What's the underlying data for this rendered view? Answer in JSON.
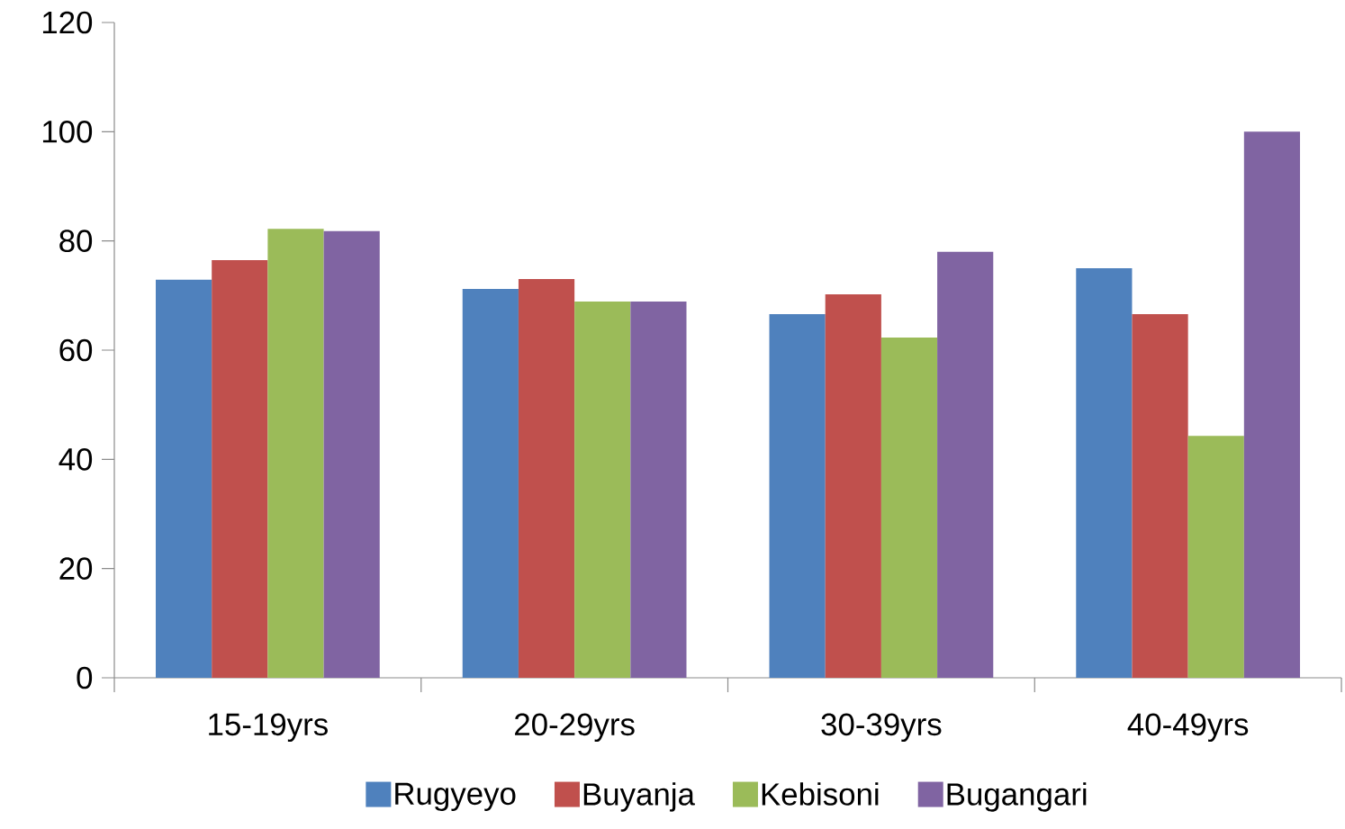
{
  "chart_data": {
    "type": "bar",
    "categories": [
      "15-19yrs",
      "20-29yrs",
      "30-39yrs",
      "40-49yrs"
    ],
    "series": [
      {
        "name": "Rugyeyo",
        "color": "#4f81bd",
        "values": [
          72.9,
          71.2,
          66.6,
          75.0
        ]
      },
      {
        "name": "Buyanja",
        "color": "#c0504d",
        "values": [
          76.5,
          73.0,
          70.2,
          66.6
        ]
      },
      {
        "name": "Kebisoni",
        "color": "#9bbb59",
        "values": [
          82.2,
          68.9,
          62.3,
          44.3
        ]
      },
      {
        "name": "Bugangari",
        "color": "#8064a2",
        "values": [
          81.8,
          68.9,
          78.0,
          100
        ]
      }
    ],
    "ylim": [
      0,
      120
    ],
    "yticks": [
      0,
      20,
      40,
      60,
      80,
      100,
      120
    ],
    "grid": false,
    "legend": "bottom"
  }
}
